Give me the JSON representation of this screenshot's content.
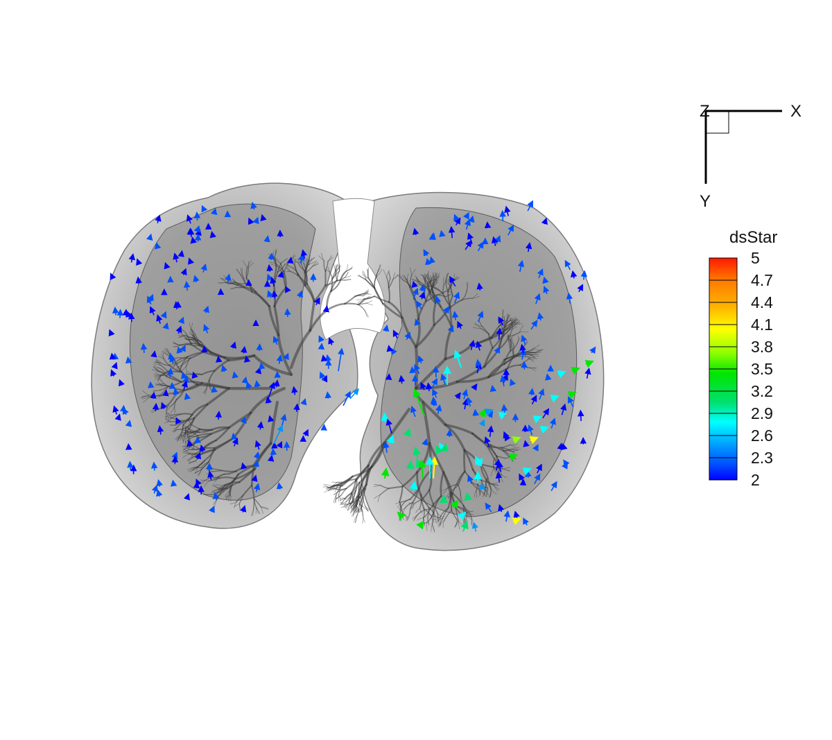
{
  "axes_triad": {
    "x_label": "X",
    "y_label": "Y",
    "z_label": "Z"
  },
  "legend": {
    "title": "dsStar",
    "levels": [
      "5",
      "4.7",
      "4.4",
      "4.1",
      "3.8",
      "3.5",
      "3.2",
      "2.9",
      "2.6",
      "2.3",
      "2"
    ],
    "colors": [
      "#ff1a00",
      "#ff7a00",
      "#ffb400",
      "#ffff00",
      "#8cff00",
      "#00e600",
      "#00e070",
      "#00ffff",
      "#0096ff",
      "#0050ff",
      "#0000ff"
    ],
    "min": 2,
    "max": 5
  },
  "scene": {
    "surface_color": "#9a9a9a",
    "airway_color": "#3a3a3a",
    "background": "#ffffff"
  }
}
